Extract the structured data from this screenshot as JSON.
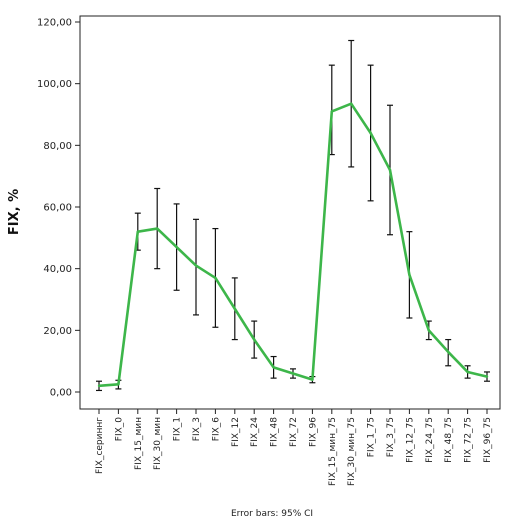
{
  "chart_data": {
    "type": "line",
    "ylabel": "FIX, %",
    "footnote": "Error bars: 95% CI",
    "ylim": [
      0,
      120
    ],
    "ytick_labels": [
      "0,00",
      "20,00",
      "40,00",
      "60,00",
      "80,00",
      "100,00",
      "120,00"
    ],
    "categories": [
      "FIX_сериннг",
      "FIX_0",
      "FIX_15_мин",
      "FIX_30_мин",
      "FIX_1",
      "FIX_3",
      "FIX_6",
      "FIX_12",
      "FIX_24",
      "FIX_48",
      "FIX_72",
      "FIX_96",
      "FIX_15_мин_75",
      "FIX_30_мин_75",
      "FIX_1_75",
      "FIX_3_75",
      "FIX_12_75",
      "FIX_24_75",
      "FIX_48_75",
      "FIX_72_75",
      "FIX_96_75"
    ],
    "series": [
      {
        "values": [
          2.0,
          2.5,
          52.0,
          53.0,
          47.0,
          41.0,
          37.0,
          27.0,
          17.0,
          8.0,
          6.0,
          4.0,
          91.0,
          93.5,
          84.0,
          72.0,
          38.0,
          20.0,
          13.0,
          6.5,
          5.0
        ],
        "ci_low": [
          0.5,
          1.0,
          46.0,
          40.0,
          33.0,
          25.0,
          21.0,
          17.0,
          11.0,
          4.5,
          4.5,
          3.0,
          77.0,
          73.0,
          62.0,
          51.0,
          24.0,
          17.0,
          8.5,
          4.5,
          3.5
        ],
        "ci_high": [
          3.5,
          3.8,
          58.0,
          66.0,
          61.0,
          56.0,
          53.0,
          37.0,
          23.0,
          11.5,
          7.5,
          5.0,
          106.0,
          114.0,
          106.0,
          93.0,
          52.0,
          23.0,
          17.0,
          8.5,
          6.5
        ]
      }
    ],
    "colors": {
      "line": "#3db64a",
      "error_bar": "#111111",
      "axis": "#222222"
    },
    "grid": false,
    "legend": "none"
  }
}
